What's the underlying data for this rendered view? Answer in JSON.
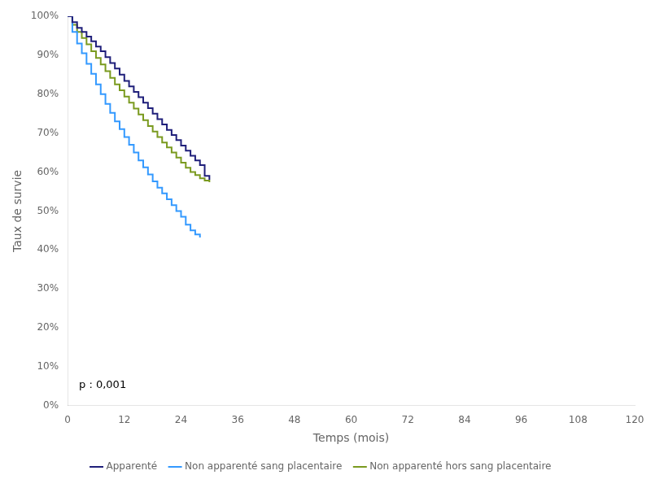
{
  "chart_data": {
    "type": "step",
    "xlabel": "Temps (mois)",
    "ylabel": "Taux de survie",
    "xlim": [
      0,
      120
    ],
    "ylim": [
      0,
      1.0
    ],
    "xticks": [
      0,
      12,
      24,
      36,
      48,
      60,
      72,
      84,
      96,
      108,
      120
    ],
    "yticks": [
      {
        "value": 0.0,
        "label": "0%"
      },
      {
        "value": 0.1,
        "label": "10%"
      },
      {
        "value": 0.2,
        "label": "20%"
      },
      {
        "value": 0.3,
        "label": "30%"
      },
      {
        "value": 0.4,
        "label": "40%"
      },
      {
        "value": 0.5,
        "label": "50%"
      },
      {
        "value": 0.6,
        "label": "60%"
      },
      {
        "value": 0.7,
        "label": "70%"
      },
      {
        "value": 0.8,
        "label": "80%"
      },
      {
        "value": 0.9,
        "label": "90%"
      },
      {
        "value": 1.0,
        "label": "100%"
      }
    ],
    "annotation": "p : 0,001",
    "grid": false,
    "legend": "bottom",
    "series": [
      {
        "name": "Apparenté",
        "color": "#1f1f7a",
        "x": [
          0,
          1,
          2,
          3,
          4,
          5,
          6,
          7,
          8,
          9,
          10,
          11,
          12,
          13,
          14,
          15,
          16,
          17,
          18,
          19,
          20,
          21,
          22,
          23,
          24,
          25,
          26,
          27,
          28,
          29,
          30
        ],
        "values": [
          1.0,
          0.985,
          0.97,
          0.96,
          0.948,
          0.936,
          0.922,
          0.91,
          0.895,
          0.88,
          0.866,
          0.85,
          0.834,
          0.82,
          0.806,
          0.792,
          0.778,
          0.764,
          0.75,
          0.736,
          0.722,
          0.708,
          0.695,
          0.682,
          0.668,
          0.655,
          0.642,
          0.63,
          0.618,
          0.59,
          0.58
        ]
      },
      {
        "name": "Non apparenté sang placentaire",
        "color": "#3399ff",
        "x": [
          0,
          1,
          2,
          3,
          4,
          5,
          6,
          7,
          8,
          9,
          10,
          11,
          12,
          13,
          14,
          15,
          16,
          17,
          18,
          19,
          20,
          21,
          22,
          23,
          24,
          25,
          26,
          27,
          28
        ],
        "values": [
          1.0,
          0.96,
          0.93,
          0.905,
          0.878,
          0.852,
          0.825,
          0.8,
          0.775,
          0.752,
          0.73,
          0.71,
          0.69,
          0.67,
          0.65,
          0.63,
          0.612,
          0.594,
          0.576,
          0.56,
          0.545,
          0.53,
          0.515,
          0.5,
          0.485,
          0.465,
          0.45,
          0.44,
          0.432
        ]
      },
      {
        "name": "Non apparenté hors sang placentaire",
        "color": "#7a9a1f",
        "x": [
          0,
          1,
          2,
          3,
          4,
          5,
          6,
          7,
          8,
          9,
          10,
          11,
          12,
          13,
          14,
          15,
          16,
          17,
          18,
          19,
          20,
          21,
          22,
          23,
          24,
          25,
          26,
          27,
          28,
          29,
          30
        ],
        "values": [
          1.0,
          0.978,
          0.96,
          0.944,
          0.928,
          0.91,
          0.893,
          0.876,
          0.859,
          0.842,
          0.825,
          0.81,
          0.794,
          0.778,
          0.763,
          0.748,
          0.733,
          0.718,
          0.704,
          0.69,
          0.676,
          0.663,
          0.65,
          0.637,
          0.624,
          0.611,
          0.6,
          0.592,
          0.584,
          0.578,
          0.574
        ]
      }
    ]
  }
}
